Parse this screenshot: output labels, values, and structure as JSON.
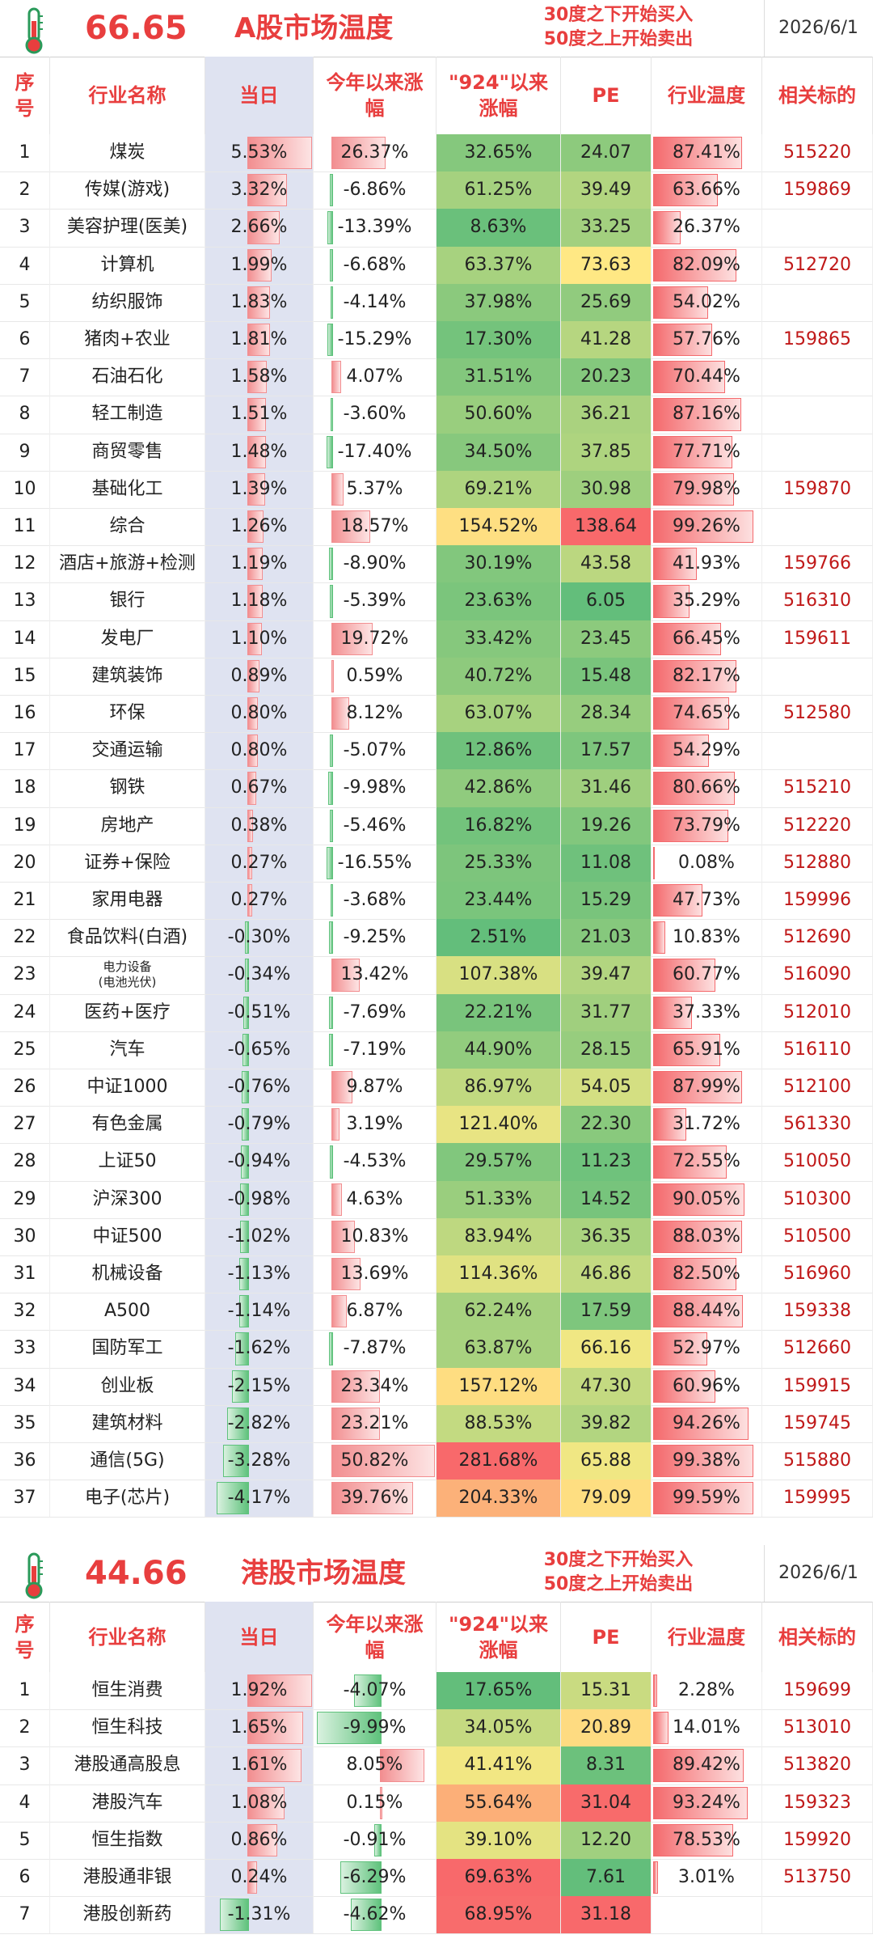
{
  "colors": {
    "accent": "#e83e3e",
    "code": "#c01818",
    "today_bg": "#dfe3f1",
    "red_bar": "#f4999b",
    "green_bar": "#5fc27c"
  },
  "a_share": {
    "score": "66.65",
    "title": "A股市场温度",
    "rule_buy": "30度之下开始买入",
    "rule_sell": "50度之上开始卖出",
    "date": "2026/6/1",
    "headers": {
      "idx": "序号",
      "name": "行业名称",
      "today": "当日",
      "ytd": "今年以来涨幅",
      "since924": "\"924\"以来涨幅",
      "pe": "PE",
      "temp": "行业温度",
      "code": "相关标的"
    },
    "rows": [
      {
        "idx": "1",
        "name": "煤炭",
        "today": "5.53%",
        "ytd": "26.37%",
        "since924": "32.65%",
        "pe": "24.07",
        "temp": "87.41%",
        "code": "515220"
      },
      {
        "idx": "2",
        "name": "传媒(游戏)",
        "today": "3.32%",
        "ytd": "-6.86%",
        "since924": "61.25%",
        "pe": "39.49",
        "temp": "63.66%",
        "code": "159869"
      },
      {
        "idx": "3",
        "name": "美容护理(医美)",
        "today": "2.66%",
        "ytd": "-13.39%",
        "since924": "8.63%",
        "pe": "33.25",
        "temp": "26.37%",
        "code": ""
      },
      {
        "idx": "4",
        "name": "计算机",
        "today": "1.99%",
        "ytd": "-6.68%",
        "since924": "63.37%",
        "pe": "73.63",
        "temp": "82.09%",
        "code": "512720"
      },
      {
        "idx": "5",
        "name": "纺织服饰",
        "today": "1.83%",
        "ytd": "-4.14%",
        "since924": "37.98%",
        "pe": "25.69",
        "temp": "54.02%",
        "code": ""
      },
      {
        "idx": "6",
        "name": "猪肉+农业",
        "today": "1.81%",
        "ytd": "-15.29%",
        "since924": "17.30%",
        "pe": "41.28",
        "temp": "57.76%",
        "code": "159865"
      },
      {
        "idx": "7",
        "name": "石油石化",
        "today": "1.58%",
        "ytd": "4.07%",
        "since924": "31.51%",
        "pe": "20.23",
        "temp": "70.44%",
        "code": ""
      },
      {
        "idx": "8",
        "name": "轻工制造",
        "today": "1.51%",
        "ytd": "-3.60%",
        "since924": "50.60%",
        "pe": "36.21",
        "temp": "87.16%",
        "code": ""
      },
      {
        "idx": "9",
        "name": "商贸零售",
        "today": "1.48%",
        "ytd": "-17.40%",
        "since924": "34.50%",
        "pe": "37.85",
        "temp": "77.71%",
        "code": ""
      },
      {
        "idx": "10",
        "name": "基础化工",
        "today": "1.39%",
        "ytd": "5.37%",
        "since924": "69.21%",
        "pe": "30.98",
        "temp": "79.98%",
        "code": "159870"
      },
      {
        "idx": "11",
        "name": "综合",
        "today": "1.26%",
        "ytd": "18.57%",
        "since924": "154.52%",
        "pe": "138.64",
        "temp": "99.26%",
        "code": ""
      },
      {
        "idx": "12",
        "name": "酒店+旅游+检测",
        "today": "1.19%",
        "ytd": "-8.90%",
        "since924": "30.19%",
        "pe": "43.58",
        "temp": "41.93%",
        "code": "159766"
      },
      {
        "idx": "13",
        "name": "银行",
        "today": "1.18%",
        "ytd": "-5.39%",
        "since924": "23.63%",
        "pe": "6.05",
        "temp": "35.29%",
        "code": "516310"
      },
      {
        "idx": "14",
        "name": "发电厂",
        "today": "1.10%",
        "ytd": "19.72%",
        "since924": "33.42%",
        "pe": "23.45",
        "temp": "66.45%",
        "code": "159611"
      },
      {
        "idx": "15",
        "name": "建筑装饰",
        "today": "0.89%",
        "ytd": "0.59%",
        "since924": "40.72%",
        "pe": "15.48",
        "temp": "82.17%",
        "code": ""
      },
      {
        "idx": "16",
        "name": "环保",
        "today": "0.80%",
        "ytd": "8.12%",
        "since924": "63.07%",
        "pe": "28.34",
        "temp": "74.65%",
        "code": "512580"
      },
      {
        "idx": "17",
        "name": "交通运输",
        "today": "0.80%",
        "ytd": "-5.07%",
        "since924": "12.86%",
        "pe": "17.57",
        "temp": "54.29%",
        "code": ""
      },
      {
        "idx": "18",
        "name": "钢铁",
        "today": "0.67%",
        "ytd": "-9.98%",
        "since924": "42.86%",
        "pe": "31.46",
        "temp": "80.66%",
        "code": "515210"
      },
      {
        "idx": "19",
        "name": "房地产",
        "today": "0.38%",
        "ytd": "-5.46%",
        "since924": "16.82%",
        "pe": "19.26",
        "temp": "73.79%",
        "code": "512220"
      },
      {
        "idx": "20",
        "name": "证券+保险",
        "today": "0.27%",
        "ytd": "-16.55%",
        "since924": "25.33%",
        "pe": "11.08",
        "temp": "0.08%",
        "code": "512880"
      },
      {
        "idx": "21",
        "name": "家用电器",
        "today": "0.27%",
        "ytd": "-3.68%",
        "since924": "23.44%",
        "pe": "15.29",
        "temp": "47.73%",
        "code": "159996"
      },
      {
        "idx": "22",
        "name": "食品饮料(白酒)",
        "today": "-0.30%",
        "ytd": "-9.25%",
        "since924": "2.51%",
        "pe": "21.03",
        "temp": "10.83%",
        "code": "512690"
      },
      {
        "idx": "23",
        "name": "电力设备",
        "name2": "(电池光伏)",
        "today": "-0.34%",
        "ytd": "13.42%",
        "since924": "107.38%",
        "pe": "39.47",
        "temp": "60.77%",
        "code": "516090"
      },
      {
        "idx": "24",
        "name": "医药+医疗",
        "today": "-0.51%",
        "ytd": "-7.69%",
        "since924": "22.21%",
        "pe": "31.77",
        "temp": "37.33%",
        "code": "512010"
      },
      {
        "idx": "25",
        "name": "汽车",
        "today": "-0.65%",
        "ytd": "-7.19%",
        "since924": "44.90%",
        "pe": "28.15",
        "temp": "65.91%",
        "code": "516110"
      },
      {
        "idx": "26",
        "name": "中证1000",
        "today": "-0.76%",
        "ytd": "9.87%",
        "since924": "86.97%",
        "pe": "54.05",
        "temp": "87.99%",
        "code": "512100"
      },
      {
        "idx": "27",
        "name": "有色金属",
        "today": "-0.79%",
        "ytd": "3.19%",
        "since924": "121.40%",
        "pe": "22.30",
        "temp": "31.72%",
        "code": "561330"
      },
      {
        "idx": "28",
        "name": "上证50",
        "today": "-0.94%",
        "ytd": "-4.53%",
        "since924": "29.57%",
        "pe": "11.23",
        "temp": "72.55%",
        "code": "510050"
      },
      {
        "idx": "29",
        "name": "沪深300",
        "today": "-0.98%",
        "ytd": "4.63%",
        "since924": "51.33%",
        "pe": "14.52",
        "temp": "90.05%",
        "code": "510300"
      },
      {
        "idx": "30",
        "name": "中证500",
        "today": "-1.02%",
        "ytd": "10.83%",
        "since924": "83.94%",
        "pe": "36.35",
        "temp": "88.03%",
        "code": "510500"
      },
      {
        "idx": "31",
        "name": "机械设备",
        "today": "-1.13%",
        "ytd": "13.69%",
        "since924": "114.36%",
        "pe": "46.86",
        "temp": "82.50%",
        "code": "516960"
      },
      {
        "idx": "32",
        "name": "A500",
        "today": "-1.14%",
        "ytd": "6.87%",
        "since924": "62.24%",
        "pe": "17.59",
        "temp": "88.44%",
        "code": "159338"
      },
      {
        "idx": "33",
        "name": "国防军工",
        "today": "-1.62%",
        "ytd": "-7.87%",
        "since924": "63.87%",
        "pe": "66.16",
        "temp": "52.97%",
        "code": "512660"
      },
      {
        "idx": "34",
        "name": "创业板",
        "today": "-2.15%",
        "ytd": "23.34%",
        "since924": "157.12%",
        "pe": "47.30",
        "temp": "60.96%",
        "code": "159915"
      },
      {
        "idx": "35",
        "name": "建筑材料",
        "today": "-2.82%",
        "ytd": "23.21%",
        "since924": "88.53%",
        "pe": "39.82",
        "temp": "94.26%",
        "code": "159745"
      },
      {
        "idx": "36",
        "name": "通信(5G)",
        "today": "-3.28%",
        "ytd": "50.82%",
        "since924": "281.68%",
        "pe": "65.88",
        "temp": "99.38%",
        "code": "515880"
      },
      {
        "idx": "37",
        "name": "电子(芯片)",
        "today": "-4.17%",
        "ytd": "39.76%",
        "since924": "204.33%",
        "pe": "79.09",
        "temp": "99.59%",
        "code": "159995"
      }
    ]
  },
  "hk_share": {
    "score": "44.66",
    "title": "港股市场温度",
    "rule_buy": "30度之下开始买入",
    "rule_sell": "50度之上开始卖出",
    "date": "2026/6/1",
    "headers": {
      "idx": "序号",
      "name": "行业名称",
      "today": "当日",
      "ytd": "今年以来涨幅",
      "since924": "\"924\"以来涨幅",
      "pe": "PE",
      "temp": "行业温度",
      "code": "相关标的"
    },
    "rows": [
      {
        "idx": "1",
        "name": "恒生消费",
        "today": "1.92%",
        "ytd": "-4.07%",
        "since924": "17.65%",
        "pe": "15.31",
        "temp": "2.28%",
        "code": "159699"
      },
      {
        "idx": "2",
        "name": "恒生科技",
        "today": "1.65%",
        "ytd": "-9.99%",
        "since924": "34.05%",
        "pe": "20.89",
        "temp": "14.01%",
        "code": "513010"
      },
      {
        "idx": "3",
        "name": "港股通高股息",
        "today": "1.61%",
        "ytd": "8.05%",
        "since924": "41.41%",
        "pe": "8.31",
        "temp": "89.42%",
        "code": "513820"
      },
      {
        "idx": "4",
        "name": "港股汽车",
        "today": "1.08%",
        "ytd": "0.15%",
        "since924": "55.64%",
        "pe": "31.04",
        "temp": "93.24%",
        "code": "159323"
      },
      {
        "idx": "5",
        "name": "恒生指数",
        "today": "0.86%",
        "ytd": "-0.91%",
        "since924": "39.10%",
        "pe": "12.20",
        "temp": "78.53%",
        "code": "159920"
      },
      {
        "idx": "6",
        "name": "港股通非银",
        "today": "0.24%",
        "ytd": "-6.29%",
        "since924": "69.63%",
        "pe": "7.61",
        "temp": "3.01%",
        "code": "513750"
      },
      {
        "idx": "7",
        "name": "港股创新药",
        "today": "-1.31%",
        "ytd": "-4.62%",
        "since924": "68.95%",
        "pe": "31.18",
        "temp": "",
        "code": ""
      }
    ]
  }
}
